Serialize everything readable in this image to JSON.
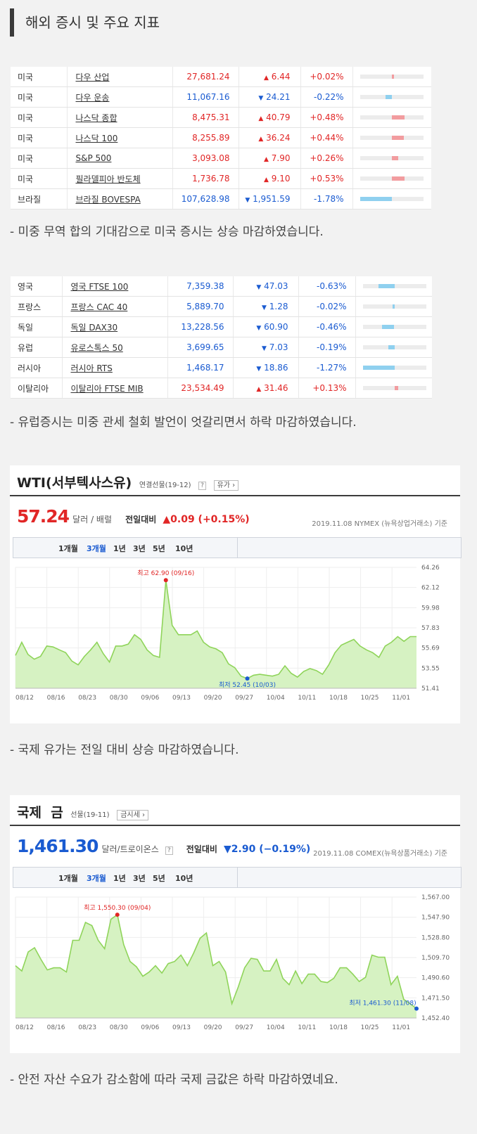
{
  "header": {
    "title": "해외 증시 및 주요 지표"
  },
  "us_table": [
    {
      "country": "미국",
      "name": "다우 산업",
      "price": "27,681.24",
      "change": "6.44",
      "pct": "+0.02%",
      "dir": "up",
      "bar": 0.03
    },
    {
      "country": "미국",
      "name": "다우 운송",
      "price": "11,067.16",
      "change": "24.21",
      "pct": "-0.22%",
      "dir": "dn",
      "bar": 0.2
    },
    {
      "country": "미국",
      "name": "나스닥 종합",
      "price": "8,475.31",
      "change": "40.79",
      "pct": "+0.48%",
      "dir": "up",
      "bar": 0.42
    },
    {
      "country": "미국",
      "name": "나스닥 100",
      "price": "8,255.89",
      "change": "36.24",
      "pct": "+0.44%",
      "dir": "up",
      "bar": 0.38
    },
    {
      "country": "미국",
      "name": "S&P 500",
      "price": "3,093.08",
      "change": "7.90",
      "pct": "+0.26%",
      "dir": "up",
      "bar": 0.22
    },
    {
      "country": "미국",
      "name": "필라델피아 반도체",
      "price": "1,736.78",
      "change": "9.10",
      "pct": "+0.53%",
      "dir": "up",
      "bar": 0.42
    },
    {
      "country": "브라질",
      "name": "브라질 BOVESPA",
      "price": "107,628.98",
      "change": "1,951.59",
      "pct": "-1.78%",
      "dir": "dn",
      "bar": 1.0
    }
  ],
  "note_us": "- 미중 무역 합의 기대감으로 미국 증시는 상승 마감하였습니다.",
  "eu_table": [
    {
      "country": "영국",
      "name": "영국 FTSE 100",
      "price": "7,359.38",
      "change": "47.03",
      "pct": "-0.63%",
      "dir": "dn",
      "bar": 0.5
    },
    {
      "country": "프랑스",
      "name": "프랑스 CAC 40",
      "price": "5,889.70",
      "change": "1.28",
      "pct": "-0.02%",
      "dir": "dn",
      "bar": 0.05
    },
    {
      "country": "독일",
      "name": "독일 DAX30",
      "price": "13,228.56",
      "change": "60.90",
      "pct": "-0.46%",
      "dir": "dn",
      "bar": 0.38
    },
    {
      "country": "유럽",
      "name": "유로스톡스 50",
      "price": "3,699.65",
      "change": "7.03",
      "pct": "-0.19%",
      "dir": "dn",
      "bar": 0.2
    },
    {
      "country": "러시아",
      "name": "러시아 RTS",
      "price": "1,468.17",
      "change": "18.86",
      "pct": "-1.27%",
      "dir": "dn",
      "bar": 1.0
    },
    {
      "country": "이탈리아",
      "name": "이탈리아 FTSE MIB",
      "price": "23,534.49",
      "change": "31.46",
      "pct": "+0.13%",
      "dir": "up",
      "bar": 0.12
    }
  ],
  "note_eu": "- 유럽증시는 미중 관세 철회 발언이 엇갈리면서 하락 마감하였습니다.",
  "oil": {
    "title": "WTI(서부텍사스유)",
    "sub": "연결선물(19-12)",
    "help": "?",
    "btn": "유가",
    "price": "57.24",
    "unit": "달러 / 배럴",
    "prev_label": "전일대비",
    "prev_value": "▲0.09 (+0.15%)",
    "source": "2019.11.08  NYMEX (뉴욕상업거래소) 기준",
    "tabs": [
      "1개월",
      "3개월",
      "1년",
      "3년",
      "5년",
      "10년"
    ],
    "max_label": "최고 62.90 (09/16)",
    "min_label": "최저 52.45 (10/03)"
  },
  "note_oil": "- 국제 유가는 전일 대비 상승 마감하였습니다.",
  "gold": {
    "title": "국제  금",
    "sub": "선물(19-11)",
    "btn": "금시세",
    "help": "?",
    "price": "1,461.30",
    "unit": "달러/트로이온스",
    "prev_label": "전일대비",
    "prev_value": "▼2.90 (−0.19%)",
    "source": "2019.11.08  COMEX(뉴욕상품거래소) 기준",
    "tabs": [
      "1개월",
      "3개월",
      "1년",
      "3년",
      "5년",
      "10년"
    ],
    "max_label": "최고 1,550.30 (09/04)",
    "min_label": "최저 1,461.30 (11/08)"
  },
  "note_gold": "- 안전 자산 수요가 감소함에 따라 국제 금값은 하락 마감하였네요.",
  "chart_data": [
    {
      "type": "area",
      "xlabels": [
        "08/12",
        "08/16",
        "08/23",
        "08/30",
        "09/06",
        "09/13",
        "09/20",
        "09/27",
        "10/04",
        "10/11",
        "10/18",
        "10/25",
        "11/01"
      ],
      "yticks": [
        "64.26",
        "62.12",
        "59.98",
        "57.83",
        "55.69",
        "53.55",
        "51.41"
      ],
      "ylim": [
        51.41,
        64.26
      ],
      "values": [
        54.9,
        56.3,
        55.0,
        54.5,
        54.8,
        55.9,
        55.8,
        55.5,
        55.2,
        54.3,
        53.9,
        54.8,
        55.5,
        56.3,
        55.1,
        54.2,
        55.9,
        55.9,
        56.1,
        57.1,
        56.6,
        55.5,
        54.9,
        54.7,
        62.9,
        58.1,
        57.1,
        57.1,
        57.1,
        57.5,
        56.3,
        55.8,
        55.6,
        55.2,
        54.0,
        53.6,
        52.7,
        52.45,
        52.8,
        52.9,
        52.8,
        52.7,
        52.9,
        53.8,
        53.0,
        52.6,
        53.2,
        53.5,
        53.3,
        52.9,
        53.9,
        55.2,
        56.0,
        56.3,
        56.6,
        55.9,
        55.5,
        55.2,
        54.7,
        55.9,
        56.3,
        56.9,
        56.4,
        56.9,
        56.9
      ]
    },
    {
      "type": "area",
      "xlabels": [
        "08/12",
        "08/16",
        "08/23",
        "08/30",
        "09/06",
        "09/13",
        "09/20",
        "09/27",
        "10/04",
        "10/11",
        "10/18",
        "10/25",
        "11/01"
      ],
      "yticks": [
        "1,567.00",
        "1,547.90",
        "1,528.80",
        "1,509.70",
        "1,490.60",
        "1,471.50",
        "1,452.40"
      ],
      "ylim": [
        1452.4,
        1567.0
      ],
      "values": [
        1502,
        1497,
        1515,
        1519,
        1508,
        1498,
        1500,
        1500,
        1496,
        1526,
        1526,
        1543,
        1540,
        1526,
        1518,
        1546,
        1550.3,
        1522,
        1506,
        1501,
        1492,
        1496,
        1502,
        1495,
        1504,
        1506,
        1512,
        1502,
        1514,
        1528,
        1533,
        1502,
        1506,
        1496,
        1466,
        1482,
        1500,
        1509,
        1508,
        1497,
        1497,
        1508,
        1490,
        1484,
        1497,
        1485,
        1494,
        1494,
        1487,
        1486,
        1490,
        1500,
        1500,
        1494,
        1487,
        1491,
        1512,
        1510,
        1510,
        1484,
        1492,
        1470,
        1466,
        1461.3
      ]
    }
  ]
}
